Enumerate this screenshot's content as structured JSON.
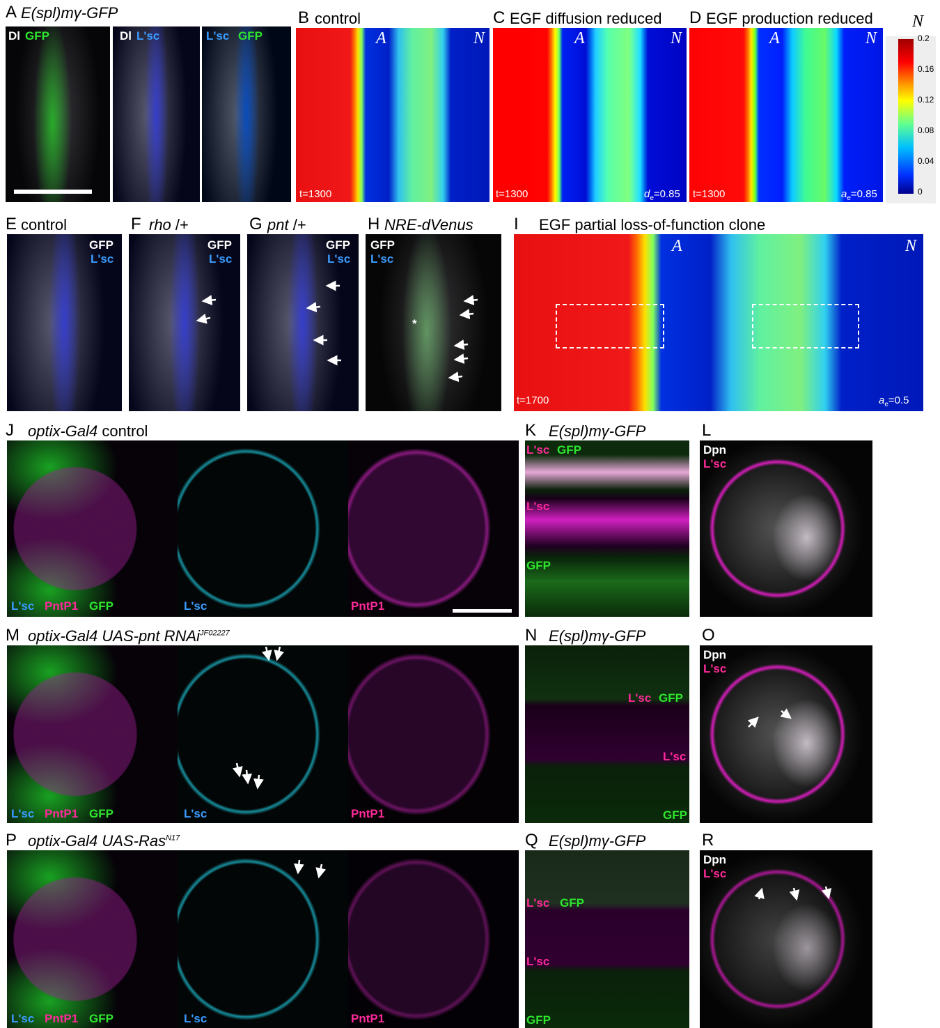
{
  "A": {
    "letter": "A",
    "title": "E(spl)mγ-GFP",
    "ch": [
      "Dl",
      "GFP",
      "Dl",
      "L'sc",
      "L'sc",
      "GFP"
    ]
  },
  "B": {
    "letter": "B",
    "title": "control",
    "a": "A",
    "n": "N",
    "t": "t=1300"
  },
  "C": {
    "letter": "C",
    "title": "EGF diffusion reduced",
    "a": "A",
    "n": "N",
    "t": "t=1300",
    "p": [
      "d",
      "e",
      "=0.85"
    ]
  },
  "D": {
    "letter": "D",
    "title": "EGF production reduced",
    "a": "A",
    "n": "N",
    "t": "t=1300",
    "p": [
      "a",
      "e",
      "=0.85"
    ]
  },
  "colorbar": {
    "title": "N",
    "ticks": [
      "0.2",
      "0.16",
      "0.12",
      "0.08",
      "0.04",
      "0"
    ]
  },
  "E": {
    "letter": "E",
    "title": "control",
    "ch": [
      "GFP",
      "L'sc"
    ]
  },
  "F": {
    "letter": "F",
    "title": "rho",
    "suffix": "/+",
    "ch": [
      "GFP",
      "L'sc"
    ]
  },
  "G": {
    "letter": "G",
    "title": "pnt",
    "suffix": "/+",
    "ch": [
      "GFP",
      "L'sc"
    ]
  },
  "H": {
    "letter": "H",
    "title": "NRE-dVenus",
    "ch": [
      "GFP",
      "L'sc"
    ],
    "mark": "*"
  },
  "I": {
    "letter": "I",
    "title": "EGF partial loss-of-function clone",
    "a": "A",
    "n": "N",
    "t": "t=1700",
    "p": [
      "a",
      "e",
      "=0.5"
    ]
  },
  "J": {
    "letter": "J",
    "title": "optix-Gal4",
    "suffix": "control",
    "ch": [
      "L'sc",
      "PntP1",
      "GFP",
      "L'sc",
      "PntP1"
    ]
  },
  "K": {
    "letter": "K",
    "title": "E(spl)mγ-GFP",
    "ch": [
      "L'sc",
      "GFP",
      "L'sc",
      "GFP"
    ]
  },
  "L": {
    "letter": "L",
    "ch": [
      "Dpn",
      "L'sc"
    ]
  },
  "M": {
    "letter": "M",
    "title": "optix-Gal4 UAS-pnt RNAi",
    "sup": "JF02227",
    "ch": [
      "L'sc",
      "PntP1",
      "GFP",
      "L'sc",
      "PntP1"
    ]
  },
  "N": {
    "letter": "N",
    "title": "E(spl)mγ-GFP",
    "ch": [
      "L'sc",
      "GFP",
      "L'sc",
      "GFP"
    ]
  },
  "O": {
    "letter": "O",
    "ch": [
      "Dpn",
      "L'sc"
    ]
  },
  "P": {
    "letter": "P",
    "title": "optix-Gal4 UAS-Ras",
    "sup": "N17",
    "ch": [
      "L'sc",
      "PntP1",
      "GFP",
      "L'sc",
      "PntP1"
    ]
  },
  "Q": {
    "letter": "Q",
    "title": "E(spl)mγ-GFP",
    "ch": [
      "L'sc",
      "GFP",
      "L'sc",
      "GFP"
    ]
  },
  "R": {
    "letter": "R",
    "ch": [
      "Dpn",
      "L'sc"
    ]
  }
}
